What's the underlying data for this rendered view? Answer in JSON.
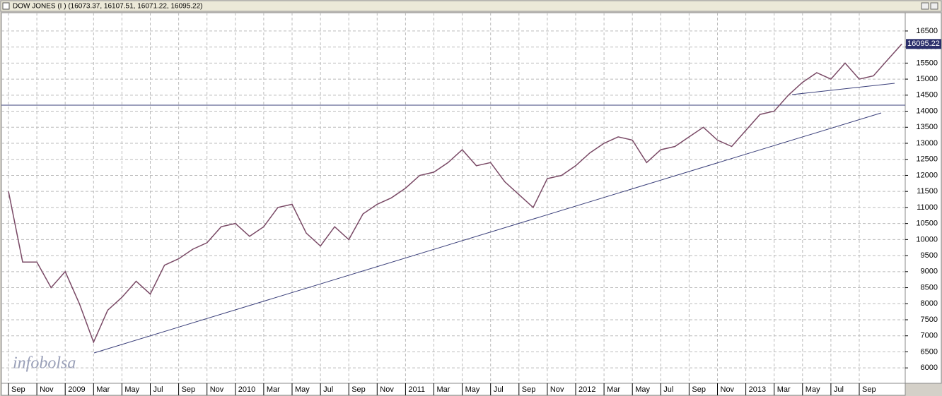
{
  "chart_data": {
    "type": "line",
    "title": "DOW JONES (I ) (16073.37, 16107.51, 16071.22, 16095.22)",
    "watermark": "infobolsa",
    "categories": [
      "Sep",
      null,
      "Nov",
      null,
      "2009",
      null,
      "Mar",
      null,
      "May",
      null,
      "Jul",
      null,
      "Sep",
      null,
      "Nov",
      null,
      "2010",
      null,
      "Mar",
      null,
      "May",
      null,
      "Jul",
      null,
      "Sep",
      null,
      "Nov",
      null,
      "2011",
      null,
      "Mar",
      null,
      "May",
      null,
      "Jul",
      null,
      "Sep",
      null,
      "Nov",
      null,
      "2012",
      null,
      "Mar",
      null,
      "May",
      null,
      "Jul",
      null,
      "Sep",
      null,
      "Nov",
      null,
      "2013",
      null,
      "Mar",
      null,
      "May",
      null,
      "Jul",
      null,
      "Sep",
      null,
      null,
      null
    ],
    "series": [
      {
        "name": "DOW JONES",
        "color": "#7a4a66",
        "values": [
          11500,
          9300,
          9300,
          8500,
          9000,
          8000,
          6800,
          7800,
          8200,
          8700,
          8300,
          9200,
          9400,
          9700,
          9900,
          10400,
          10500,
          10100,
          10400,
          11000,
          11100,
          10200,
          9800,
          10400,
          10000,
          10800,
          11100,
          11300,
          11600,
          12000,
          12100,
          12400,
          12800,
          12300,
          12400,
          11800,
          11400,
          11000,
          11900,
          12000,
          12300,
          12700,
          13000,
          13200,
          13100,
          12400,
          12800,
          12900,
          13200,
          13500,
          13100,
          12900,
          13400,
          13900,
          14000,
          14500,
          14900,
          15200,
          15000,
          15500,
          15000,
          15100,
          15600,
          16095.22
        ]
      }
    ],
    "ylim": [
      5520,
      17070
    ],
    "yticks": [
      6000,
      6500,
      7000,
      7500,
      8000,
      8500,
      9000,
      9500,
      10000,
      10500,
      11000,
      11500,
      12000,
      12500,
      13000,
      13500,
      14000,
      14500,
      15000,
      15500,
      16000,
      16500
    ],
    "grid": true
  }
}
